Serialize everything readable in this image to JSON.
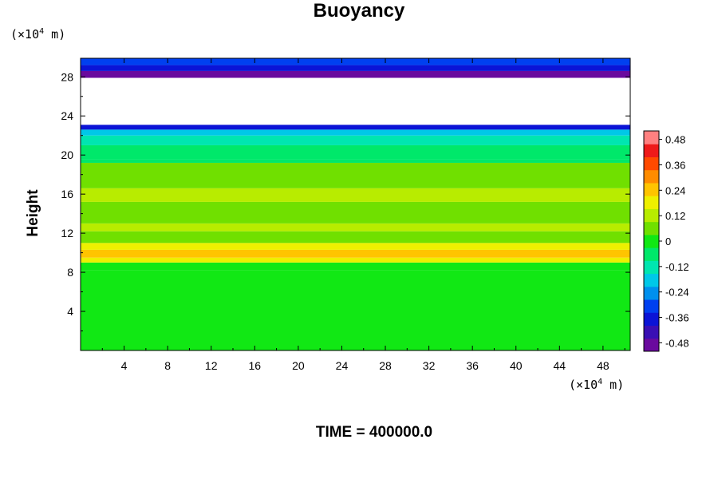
{
  "chart_data": {
    "type": "heatmap",
    "title": "Buoyancy",
    "ylabel": "Height",
    "x_unit_prefix": "(×10",
    "x_unit_exp": "4",
    "x_unit_suffix": " m)",
    "y_unit_prefix": "(×10",
    "y_unit_exp": "4",
    "y_unit_suffix": " m)",
    "footer": "TIME = 400000.0",
    "xlim": [
      0,
      50.5
    ],
    "ylim": [
      0,
      29.9
    ],
    "x_ticks": [
      4,
      8,
      12,
      16,
      20,
      24,
      28,
      32,
      36,
      40,
      44,
      48
    ],
    "y_ticks": [
      4,
      8,
      12,
      16,
      20,
      24,
      28
    ],
    "colorbar": {
      "range": [
        -0.52,
        0.52
      ],
      "ticks": [
        "0.48",
        "0.36",
        "0.24",
        "0.12",
        "0",
        "-0.12",
        "-0.24",
        "-0.36",
        "-0.48"
      ],
      "tick_values": [
        0.48,
        0.36,
        0.24,
        0.12,
        0,
        -0.12,
        -0.24,
        -0.36,
        -0.48
      ]
    },
    "bands": [
      {
        "y0": 0,
        "y1": 8.2,
        "value": -0.03
      },
      {
        "y0": 8.2,
        "y1": 9.0,
        "value": 0.03
      },
      {
        "y0": 9.0,
        "y1": 9.5,
        "value": 0.16
      },
      {
        "y0": 9.5,
        "y1": 10.3,
        "value": 0.27
      },
      {
        "y0": 10.3,
        "y1": 11.0,
        "value": 0.16
      },
      {
        "y0": 11.0,
        "y1": 12.2,
        "value": 0.07
      },
      {
        "y0": 12.2,
        "y1": 13.0,
        "value": 0.12
      },
      {
        "y0": 13.0,
        "y1": 15.2,
        "value": 0.06
      },
      {
        "y0": 15.2,
        "y1": 16.6,
        "value": 0.11
      },
      {
        "y0": 16.6,
        "y1": 19.2,
        "value": 0.05
      },
      {
        "y0": 19.2,
        "y1": 19.6,
        "value": -0.09
      },
      {
        "y0": 19.6,
        "y1": 21.0,
        "value": -0.04
      },
      {
        "y0": 21.0,
        "y1": 22.0,
        "value": -0.11
      },
      {
        "y0": 22.0,
        "y1": 22.6,
        "value": -0.2
      },
      {
        "y0": 22.6,
        "y1": 23.1,
        "value": -0.37
      },
      {
        "y0": 23.1,
        "y1": 27.9,
        "value": null
      },
      {
        "y0": 27.9,
        "y1": 28.6,
        "value": -0.48
      },
      {
        "y0": 28.6,
        "y1": 29.2,
        "value": -0.39
      },
      {
        "y0": 29.2,
        "y1": 29.9,
        "value": -0.33
      }
    ]
  },
  "colors": {
    "scale": [
      "#6a0a9e",
      "#3a0fb4",
      "#0b14d6",
      "#0040f0",
      "#0090ee",
      "#00c8e8",
      "#00e6b0",
      "#00e86a",
      "#11e814",
      "#70e000",
      "#b8ec00",
      "#eef000",
      "#ffc400",
      "#ff8c00",
      "#ff4a00",
      "#ee1a1a",
      "#ff8080"
    ],
    "blank": "#ffffff",
    "axis": "#000000"
  }
}
